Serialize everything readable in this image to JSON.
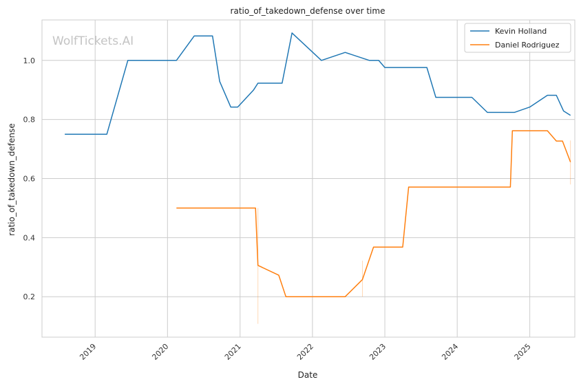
{
  "chart_data": {
    "type": "line",
    "title": "ratio_of_takedown_defense over time",
    "xlabel": "Date",
    "ylabel": "ratio_of_takedown_defense",
    "watermark": "WolfTickets.AI",
    "x_ticks": [
      "2019",
      "2020",
      "2021",
      "2022",
      "2023",
      "2024",
      "2025"
    ],
    "y_ticks": [
      "0.2",
      "0.4",
      "0.6",
      "0.8",
      "1.0"
    ],
    "xlim": [
      "2018-04-08",
      "2025-08-16"
    ],
    "ylim": [
      0.063,
      1.137
    ],
    "grid": true,
    "legend_position": "top-right",
    "series": [
      {
        "name": "Kevin Holland",
        "color": "#1f77b4",
        "points": [
          [
            "2018-08-01",
            0.75
          ],
          [
            "2019-03-01",
            0.75
          ],
          [
            "2019-06-15",
            1.0
          ],
          [
            "2020-01-01",
            1.0
          ],
          [
            "2020-02-15",
            1.0
          ],
          [
            "2020-05-15",
            1.083
          ],
          [
            "2020-08-15",
            1.083
          ],
          [
            "2020-09-20",
            0.929
          ],
          [
            "2020-11-15",
            0.842
          ],
          [
            "2020-12-20",
            0.842
          ],
          [
            "2021-03-10",
            0.9
          ],
          [
            "2021-04-01",
            0.923
          ],
          [
            "2021-08-01",
            0.923
          ],
          [
            "2021-09-20",
            1.093
          ],
          [
            "2022-02-15",
            1.0
          ],
          [
            "2022-06-15",
            1.027
          ],
          [
            "2022-10-15",
            1.0
          ],
          [
            "2022-12-01",
            1.0
          ],
          [
            "2023-01-01",
            0.976
          ],
          [
            "2023-08-01",
            0.976
          ],
          [
            "2023-09-15",
            0.875
          ],
          [
            "2024-03-15",
            0.875
          ],
          [
            "2024-06-01",
            0.824
          ],
          [
            "2024-10-15",
            0.824
          ],
          [
            "2025-01-01",
            0.842
          ],
          [
            "2025-03-31",
            0.882
          ],
          [
            "2025-05-15",
            0.882
          ],
          [
            "2025-06-20",
            0.829
          ],
          [
            "2025-07-25",
            0.814
          ]
        ]
      },
      {
        "name": "Daniel Rodriguez",
        "color": "#ff7f0e",
        "points": [
          [
            "2020-02-15",
            0.5
          ],
          [
            "2021-03-20",
            0.5
          ],
          [
            "2021-04-01",
            0.306
          ],
          [
            "2021-07-15",
            0.273
          ],
          [
            "2021-08-20",
            0.2
          ],
          [
            "2022-06-15",
            0.2
          ],
          [
            "2022-09-10",
            0.258
          ],
          [
            "2022-11-05",
            0.368
          ],
          [
            "2023-04-01",
            0.368
          ],
          [
            "2023-05-01",
            0.571
          ],
          [
            "2024-09-25",
            0.571
          ],
          [
            "2024-10-05",
            0.762
          ],
          [
            "2025-03-31",
            0.762
          ],
          [
            "2025-05-15",
            0.727
          ],
          [
            "2025-06-15",
            0.727
          ],
          [
            "2025-07-25",
            0.656
          ]
        ],
        "spikes": [
          [
            0.108,
            0.5,
            "2021-04-01"
          ],
          [
            0.2,
            0.322,
            "2022-09-10"
          ],
          [
            0.58,
            0.729,
            "2025-07-25"
          ]
        ]
      }
    ]
  }
}
